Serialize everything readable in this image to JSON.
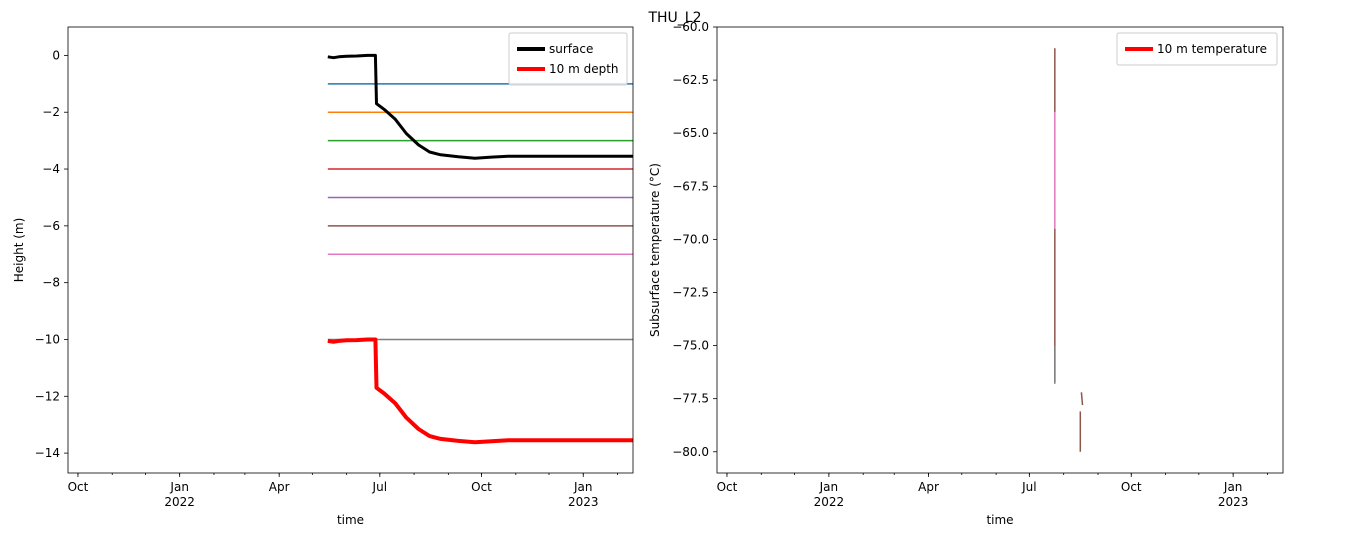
{
  "figure_title": "THU_L2",
  "chart_data": [
    {
      "type": "line",
      "xlabel": "time",
      "ylabel": "Height (m)",
      "ylim": [
        -14.7,
        1.0
      ],
      "xlim": [
        "2021-09-22",
        "2023-02-15"
      ],
      "xticks": [
        {
          "date": "2021-10-01",
          "label": "Oct",
          "sub": ""
        },
        {
          "date": "2022-01-01",
          "label": "Jan",
          "sub": "2022"
        },
        {
          "date": "2022-04-01",
          "label": "Apr",
          "sub": ""
        },
        {
          "date": "2022-07-01",
          "label": "Jul",
          "sub": ""
        },
        {
          "date": "2022-10-01",
          "label": "Oct",
          "sub": ""
        },
        {
          "date": "2023-01-01",
          "label": "Jan",
          "sub": "2023"
        }
      ],
      "yticks": [
        0,
        -2,
        -4,
        -6,
        -8,
        -10,
        -12,
        -14
      ],
      "legend_position": "top-right",
      "legend": [
        {
          "name": "surface",
          "color": "#000000"
        },
        {
          "name": "10 m depth",
          "color": "#ff0000"
        }
      ],
      "series": [
        {
          "name": "surface",
          "color": "#000000",
          "width": 3,
          "points": [
            [
              "2022-05-15",
              -0.05
            ],
            [
              "2022-05-20",
              -0.08
            ],
            [
              "2022-05-25",
              -0.05
            ],
            [
              "2022-06-01",
              -0.03
            ],
            [
              "2022-06-10",
              -0.02
            ],
            [
              "2022-06-20",
              0.0
            ],
            [
              "2022-06-27",
              0.0
            ],
            [
              "2022-06-28",
              -1.7
            ],
            [
              "2022-07-05",
              -1.9
            ],
            [
              "2022-07-15",
              -2.25
            ],
            [
              "2022-07-25",
              -2.75
            ],
            [
              "2022-08-05",
              -3.15
            ],
            [
              "2022-08-15",
              -3.4
            ],
            [
              "2022-08-25",
              -3.5
            ],
            [
              "2022-09-10",
              -3.57
            ],
            [
              "2022-09-25",
              -3.62
            ],
            [
              "2022-10-10",
              -3.58
            ],
            [
              "2022-10-25",
              -3.55
            ],
            [
              "2022-11-15",
              -3.55
            ],
            [
              "2022-12-31",
              -3.55
            ],
            [
              "2023-02-15",
              -3.55
            ]
          ]
        },
        {
          "name": "10 m depth",
          "color": "#ff0000",
          "width": 4,
          "points": [
            [
              "2022-05-15",
              -10.05
            ],
            [
              "2022-05-20",
              -10.08
            ],
            [
              "2022-05-25",
              -10.05
            ],
            [
              "2022-06-01",
              -10.03
            ],
            [
              "2022-06-10",
              -10.02
            ],
            [
              "2022-06-20",
              -10.0
            ],
            [
              "2022-06-27",
              -10.0
            ],
            [
              "2022-06-28",
              -11.7
            ],
            [
              "2022-07-05",
              -11.9
            ],
            [
              "2022-07-15",
              -12.25
            ],
            [
              "2022-07-25",
              -12.75
            ],
            [
              "2022-08-05",
              -13.15
            ],
            [
              "2022-08-15",
              -13.4
            ],
            [
              "2022-08-25",
              -13.5
            ],
            [
              "2022-09-10",
              -13.57
            ],
            [
              "2022-09-25",
              -13.62
            ],
            [
              "2022-10-10",
              -13.58
            ],
            [
              "2022-10-25",
              -13.55
            ],
            [
              "2022-11-15",
              -13.55
            ],
            [
              "2022-12-31",
              -13.55
            ],
            [
              "2023-02-15",
              -13.55
            ]
          ]
        }
      ],
      "hlines": [
        {
          "y": -1,
          "color": "#1f77b4"
        },
        {
          "y": -2,
          "color": "#ff7f0e"
        },
        {
          "y": -3,
          "color": "#2ca02c"
        },
        {
          "y": -4,
          "color": "#d62728"
        },
        {
          "y": -5,
          "color": "#9467bd"
        },
        {
          "y": -6,
          "color": "#8c564b"
        },
        {
          "y": -7,
          "color": "#e377c2"
        },
        {
          "y": -10,
          "color": "#7f7f7f"
        }
      ],
      "hline_start": "2022-05-15",
      "hline_end": "2023-02-15"
    },
    {
      "type": "line",
      "xlabel": "time",
      "ylabel": "Subsurface temperature (°C)",
      "ylim": [
        -81.0,
        -60.0
      ],
      "xlim": [
        "2021-09-22",
        "2023-02-15"
      ],
      "xticks": [
        {
          "date": "2021-10-01",
          "label": "Oct",
          "sub": ""
        },
        {
          "date": "2022-01-01",
          "label": "Jan",
          "sub": "2022"
        },
        {
          "date": "2022-04-01",
          "label": "Apr",
          "sub": ""
        },
        {
          "date": "2022-07-01",
          "label": "Jul",
          "sub": ""
        },
        {
          "date": "2022-10-01",
          "label": "Oct",
          "sub": ""
        },
        {
          "date": "2023-01-01",
          "label": "Jan",
          "sub": "2023"
        }
      ],
      "yticks": [
        -60.0,
        -62.5,
        -65.0,
        -67.5,
        -70.0,
        -72.5,
        -75.0,
        -77.5,
        -80.0
      ],
      "ytick_labels": [
        "−60.0",
        "−62.5",
        "−65.0",
        "−67.5",
        "−70.0",
        "−72.5",
        "−75.0",
        "−77.5",
        "−80.0"
      ],
      "legend_position": "top-right",
      "legend": [
        {
          "name": "10 m temperature",
          "color": "#ff0000"
        }
      ],
      "segments": [
        {
          "x1": "2022-07-24",
          "y1": -61.0,
          "x2": "2022-07-24",
          "y2": -64.0,
          "color": "#8c564b"
        },
        {
          "x1": "2022-07-24",
          "y1": -64.0,
          "x2": "2022-07-24",
          "y2": -69.5,
          "color": "#e377c2"
        },
        {
          "x1": "2022-07-24",
          "y1": -69.5,
          "x2": "2022-07-24",
          "y2": -76.7,
          "color": "#8c564b"
        },
        {
          "x1": "2022-07-24",
          "y1": -75.0,
          "x2": "2022-07-24",
          "y2": -76.8,
          "color": "#7f7f7f"
        },
        {
          "x1": "2022-08-17",
          "y1": -77.2,
          "x2": "2022-08-18",
          "y2": -77.8,
          "color": "#8c564b"
        },
        {
          "x1": "2022-08-16",
          "y1": -78.1,
          "x2": "2022-08-16",
          "y2": -80.0,
          "color": "#8c564b"
        }
      ]
    }
  ]
}
